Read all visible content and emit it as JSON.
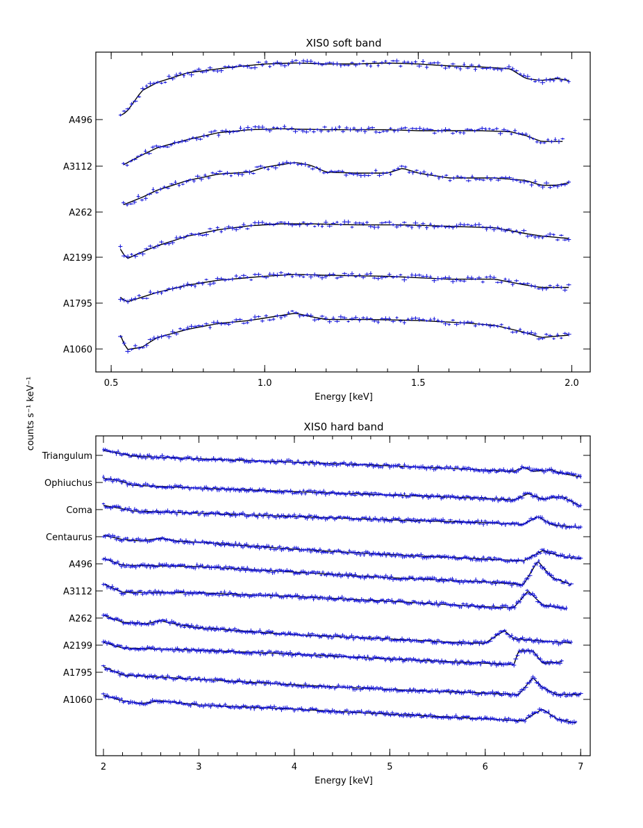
{
  "y_axis_label": "counts s⁻¹ keV⁻¹",
  "colors": {
    "data": "#1a1adb",
    "model": "#000000",
    "axes": "#000000"
  },
  "chart_data": [
    {
      "type": "line",
      "title": "XIS0 soft band",
      "xlabel": "Energy [keV]",
      "ylabel": "counts s⁻¹ keV⁻¹",
      "xlim": [
        0.45,
        2.06
      ],
      "x_ticks": [
        "0.5",
        "1.0",
        "1.5",
        "2.0"
      ],
      "grid": false,
      "legend": "none",
      "series": [
        {
          "name": "A496",
          "profile": [
            [
              0.53,
              1.06
            ],
            [
              0.55,
              0.99
            ],
            [
              0.6,
              0.55
            ],
            [
              0.65,
              0.38
            ],
            [
              0.75,
              0.18
            ],
            [
              0.9,
              0.06
            ],
            [
              1.0,
              0.0
            ],
            [
              1.1,
              -0.02
            ],
            [
              1.2,
              0.0
            ],
            [
              1.3,
              0.0
            ],
            [
              1.4,
              -0.02
            ],
            [
              1.5,
              0.0
            ],
            [
              1.6,
              0.04
            ],
            [
              1.7,
              0.06
            ],
            [
              1.8,
              0.1
            ],
            [
              1.85,
              0.3
            ],
            [
              1.9,
              0.34
            ],
            [
              1.95,
              0.3
            ],
            [
              1.99,
              0.34
            ]
          ]
        },
        {
          "name": "A3112",
          "profile": [
            [
              0.54,
              0.9
            ],
            [
              0.6,
              0.7
            ],
            [
              0.65,
              0.55
            ],
            [
              0.75,
              0.38
            ],
            [
              0.85,
              0.24
            ],
            [
              0.95,
              0.18
            ],
            [
              1.05,
              0.16
            ],
            [
              1.2,
              0.18
            ],
            [
              1.4,
              0.18
            ],
            [
              1.5,
              0.2
            ],
            [
              1.6,
              0.2
            ],
            [
              1.7,
              0.2
            ],
            [
              1.8,
              0.22
            ],
            [
              1.85,
              0.3
            ],
            [
              1.9,
              0.42
            ],
            [
              1.97,
              0.42
            ]
          ]
        },
        {
          "name": "A262",
          "profile": [
            [
              0.54,
              0.85
            ],
            [
              0.6,
              0.7
            ],
            [
              0.65,
              0.55
            ],
            [
              0.75,
              0.35
            ],
            [
              0.85,
              0.22
            ],
            [
              0.95,
              0.18
            ],
            [
              1.0,
              0.08
            ],
            [
              1.1,
              -0.02
            ],
            [
              1.15,
              0.04
            ],
            [
              1.2,
              0.18
            ],
            [
              1.3,
              0.2
            ],
            [
              1.4,
              0.2
            ],
            [
              1.45,
              0.1
            ],
            [
              1.5,
              0.2
            ],
            [
              1.6,
              0.3
            ],
            [
              1.7,
              0.3
            ],
            [
              1.75,
              0.3
            ],
            [
              1.85,
              0.35
            ],
            [
              1.9,
              0.45
            ],
            [
              1.95,
              0.45
            ],
            [
              1.99,
              0.4
            ]
          ]
        },
        {
          "name": "A2199",
          "profile": [
            [
              0.53,
              0.62
            ],
            [
              0.55,
              0.82
            ],
            [
              0.6,
              0.68
            ],
            [
              0.65,
              0.55
            ],
            [
              0.75,
              0.35
            ],
            [
              0.85,
              0.22
            ],
            [
              0.95,
              0.14
            ],
            [
              1.05,
              0.1
            ],
            [
              1.15,
              0.1
            ],
            [
              1.3,
              0.12
            ],
            [
              1.45,
              0.12
            ],
            [
              1.6,
              0.15
            ],
            [
              1.75,
              0.18
            ],
            [
              1.85,
              0.3
            ],
            [
              1.9,
              0.35
            ],
            [
              1.99,
              0.4
            ]
          ]
        },
        {
          "name": "A1795",
          "profile": [
            [
              0.53,
              0.55
            ],
            [
              0.55,
              0.65
            ],
            [
              0.6,
              0.55
            ],
            [
              0.65,
              0.45
            ],
            [
              0.75,
              0.3
            ],
            [
              0.85,
              0.2
            ],
            [
              1.0,
              0.12
            ],
            [
              1.1,
              0.08
            ],
            [
              1.2,
              0.1
            ],
            [
              1.4,
              0.12
            ],
            [
              1.6,
              0.18
            ],
            [
              1.75,
              0.18
            ],
            [
              1.85,
              0.3
            ],
            [
              1.9,
              0.35
            ],
            [
              1.99,
              0.35
            ]
          ]
        },
        {
          "name": "A1060",
          "profile": [
            [
              0.53,
              0.5
            ],
            [
              0.55,
              0.8
            ],
            [
              0.6,
              0.75
            ],
            [
              0.65,
              0.55
            ],
            [
              0.75,
              0.38
            ],
            [
              0.85,
              0.26
            ],
            [
              0.95,
              0.2
            ],
            [
              1.05,
              0.1
            ],
            [
              1.1,
              0.05
            ],
            [
              1.15,
              0.12
            ],
            [
              1.2,
              0.18
            ],
            [
              1.35,
              0.18
            ],
            [
              1.5,
              0.2
            ],
            [
              1.65,
              0.25
            ],
            [
              1.75,
              0.3
            ],
            [
              1.85,
              0.45
            ],
            [
              1.9,
              0.55
            ],
            [
              1.99,
              0.5
            ]
          ]
        }
      ]
    },
    {
      "type": "line",
      "title": "XIS0 hard band",
      "xlabel": "Energy [keV]",
      "ylabel": "counts s⁻¹ keV⁻¹",
      "xlim": [
        1.92,
        7.1
      ],
      "x_ticks": [
        "2",
        "3",
        "4",
        "5",
        "6",
        "7"
      ],
      "grid": false,
      "legend": "none",
      "series": [
        {
          "name": "Triangulum",
          "profile": [
            [
              2.0,
              0.0
            ],
            [
              2.2,
              0.12
            ],
            [
              2.3,
              0.2
            ],
            [
              3.0,
              0.3
            ],
            [
              4.0,
              0.42
            ],
            [
              5.0,
              0.55
            ],
            [
              6.0,
              0.7
            ],
            [
              6.3,
              0.75
            ],
            [
              6.4,
              0.6
            ],
            [
              6.5,
              0.75
            ],
            [
              6.7,
              0.7
            ],
            [
              6.8,
              0.82
            ],
            [
              7.0,
              0.95
            ]
          ]
        },
        {
          "name": "Ophiuchus",
          "profile": [
            [
              2.0,
              0.0
            ],
            [
              2.2,
              0.12
            ],
            [
              2.3,
              0.25
            ],
            [
              3.0,
              0.35
            ],
            [
              4.0,
              0.48
            ],
            [
              5.0,
              0.6
            ],
            [
              6.0,
              0.72
            ],
            [
              6.3,
              0.78
            ],
            [
              6.45,
              0.55
            ],
            [
              6.6,
              0.75
            ],
            [
              6.7,
              0.7
            ],
            [
              6.8,
              0.65
            ],
            [
              7.0,
              1.0
            ]
          ]
        },
        {
          "name": "Coma",
          "profile": [
            [
              2.0,
              0.0
            ],
            [
              2.2,
              0.12
            ],
            [
              2.3,
              0.2
            ],
            [
              3.0,
              0.28
            ],
            [
              4.0,
              0.4
            ],
            [
              5.0,
              0.52
            ],
            [
              6.0,
              0.62
            ],
            [
              6.4,
              0.68
            ],
            [
              6.55,
              0.4
            ],
            [
              6.7,
              0.7
            ],
            [
              7.0,
              0.8
            ]
          ]
        },
        {
          "name": "Centaurus",
          "profile": [
            [
              2.0,
              0.0
            ],
            [
              2.2,
              0.15
            ],
            [
              2.4,
              0.2
            ],
            [
              2.6,
              0.1
            ],
            [
              2.8,
              0.22
            ],
            [
              3.0,
              0.25
            ],
            [
              4.0,
              0.5
            ],
            [
              5.0,
              0.7
            ],
            [
              6.0,
              0.85
            ],
            [
              6.4,
              0.92
            ],
            [
              6.6,
              0.55
            ],
            [
              6.8,
              0.75
            ],
            [
              7.0,
              0.85
            ]
          ]
        }
      ],
      "series_b": [
        {
          "name": "A496",
          "profile": [
            [
              2.0,
              0.0
            ],
            [
              2.2,
              0.25
            ],
            [
              3.0,
              0.3
            ],
            [
              4.0,
              0.5
            ],
            [
              5.0,
              0.7
            ],
            [
              6.0,
              0.85
            ],
            [
              6.4,
              0.95
            ],
            [
              6.55,
              0.1
            ],
            [
              6.7,
              0.7
            ],
            [
              6.9,
              0.95
            ]
          ]
        },
        {
          "name": "A3112",
          "profile": [
            [
              2.0,
              0.0
            ],
            [
              2.2,
              0.3
            ],
            [
              3.0,
              0.32
            ],
            [
              4.0,
              0.45
            ],
            [
              5.0,
              0.62
            ],
            [
              6.0,
              0.82
            ],
            [
              6.3,
              0.85
            ],
            [
              6.45,
              0.25
            ],
            [
              6.6,
              0.75
            ],
            [
              6.85,
              0.9
            ]
          ]
        },
        {
          "name": "A262",
          "profile": [
            [
              2.0,
              0.0
            ],
            [
              2.2,
              0.25
            ],
            [
              2.45,
              0.3
            ],
            [
              2.6,
              0.2
            ],
            [
              2.8,
              0.35
            ],
            [
              3.0,
              0.45
            ],
            [
              4.0,
              0.7
            ],
            [
              5.0,
              0.85
            ],
            [
              5.8,
              1.0
            ],
            [
              6.0,
              1.0
            ],
            [
              6.2,
              0.55
            ],
            [
              6.3,
              0.85
            ],
            [
              6.9,
              1.0
            ]
          ]
        },
        {
          "name": "A2199",
          "profile": [
            [
              2.0,
              0.0
            ],
            [
              2.2,
              0.2
            ],
            [
              3.0,
              0.28
            ],
            [
              4.0,
              0.42
            ],
            [
              5.0,
              0.6
            ],
            [
              6.0,
              0.75
            ],
            [
              6.3,
              0.8
            ],
            [
              6.35,
              0.3
            ],
            [
              6.5,
              0.3
            ],
            [
              6.6,
              0.75
            ],
            [
              6.8,
              0.7
            ]
          ]
        },
        {
          "name": "A1795",
          "profile": [
            [
              2.0,
              0.0
            ],
            [
              2.2,
              0.3
            ],
            [
              3.0,
              0.45
            ],
            [
              4.0,
              0.65
            ],
            [
              5.0,
              0.82
            ],
            [
              6.0,
              0.95
            ],
            [
              6.35,
              1.0
            ],
            [
              6.5,
              0.4
            ],
            [
              6.6,
              0.75
            ],
            [
              6.75,
              1.0
            ],
            [
              7.0,
              1.0
            ]
          ]
        },
        {
          "name": "A1060",
          "profile": [
            [
              2.0,
              0.0
            ],
            [
              2.2,
              0.2
            ],
            [
              2.4,
              0.3
            ],
            [
              2.6,
              0.2
            ],
            [
              3.0,
              0.35
            ],
            [
              4.0,
              0.5
            ],
            [
              5.0,
              0.68
            ],
            [
              6.0,
              0.85
            ],
            [
              6.4,
              0.92
            ],
            [
              6.5,
              0.7
            ],
            [
              6.6,
              0.5
            ],
            [
              6.75,
              0.85
            ],
            [
              6.95,
              1.0
            ]
          ]
        }
      ]
    }
  ]
}
